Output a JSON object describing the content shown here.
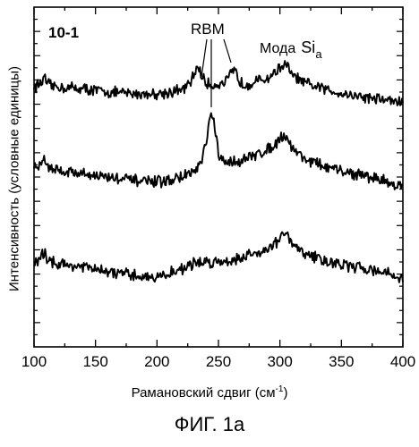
{
  "chart_data": {
    "type": "line",
    "title": "",
    "panel_label": "10-1",
    "xlabel": "Рамановский сдвиг (см",
    "xlabel_sup": "-1",
    "xlabel_close": ")",
    "ylabel": "Интенсивность (условные единицы)",
    "xlim": [
      100,
      400
    ],
    "x_ticks": [
      100,
      150,
      200,
      250,
      300,
      350,
      400
    ],
    "ylim": [
      0,
      1
    ],
    "y_ticks_labeled": false,
    "grid": false,
    "annotations": {
      "rbm": "RBM",
      "mode_prefix": "Мода",
      "mode_symbol": "Si",
      "mode_subscript": "a"
    },
    "series": [
      {
        "x": [
          100,
          105,
          108,
          112,
          120,
          140,
          160,
          180,
          200,
          210,
          220,
          226,
          230,
          233,
          236,
          240,
          244,
          248,
          252,
          256,
          260,
          263,
          266,
          270,
          280,
          290,
          298,
          303,
          306,
          310,
          320,
          340,
          360,
          380,
          400
        ],
        "values": [
          0.765,
          0.775,
          0.79,
          0.77,
          0.765,
          0.76,
          0.75,
          0.745,
          0.745,
          0.75,
          0.755,
          0.77,
          0.8,
          0.83,
          0.8,
          0.775,
          0.77,
          0.772,
          0.775,
          0.78,
          0.8,
          0.815,
          0.79,
          0.772,
          0.78,
          0.79,
          0.815,
          0.83,
          0.825,
          0.8,
          0.775,
          0.755,
          0.74,
          0.73,
          0.72
        ]
      },
      {
        "x": [
          100,
          105,
          108,
          112,
          120,
          140,
          160,
          180,
          200,
          210,
          220,
          230,
          236,
          240,
          243,
          245,
          247,
          250,
          255,
          260,
          270,
          280,
          290,
          298,
          303,
          306,
          310,
          320,
          340,
          360,
          380,
          400
        ],
        "values": [
          0.525,
          0.535,
          0.555,
          0.53,
          0.52,
          0.51,
          0.5,
          0.49,
          0.485,
          0.49,
          0.5,
          0.515,
          0.54,
          0.6,
          0.67,
          0.69,
          0.64,
          0.565,
          0.54,
          0.545,
          0.55,
          0.565,
          0.58,
          0.605,
          0.625,
          0.615,
          0.585,
          0.555,
          0.525,
          0.51,
          0.495,
          0.47
        ]
      },
      {
        "x": [
          100,
          105,
          108,
          112,
          120,
          140,
          160,
          180,
          200,
          210,
          220,
          230,
          236,
          240,
          250,
          260,
          270,
          280,
          290,
          298,
          303,
          306,
          310,
          320,
          340,
          360,
          380,
          400
        ],
        "values": [
          0.245,
          0.255,
          0.28,
          0.255,
          0.245,
          0.235,
          0.22,
          0.21,
          0.205,
          0.215,
          0.23,
          0.245,
          0.25,
          0.25,
          0.25,
          0.255,
          0.265,
          0.275,
          0.29,
          0.31,
          0.335,
          0.325,
          0.3,
          0.275,
          0.25,
          0.235,
          0.225,
          0.2
        ]
      }
    ]
  }
}
